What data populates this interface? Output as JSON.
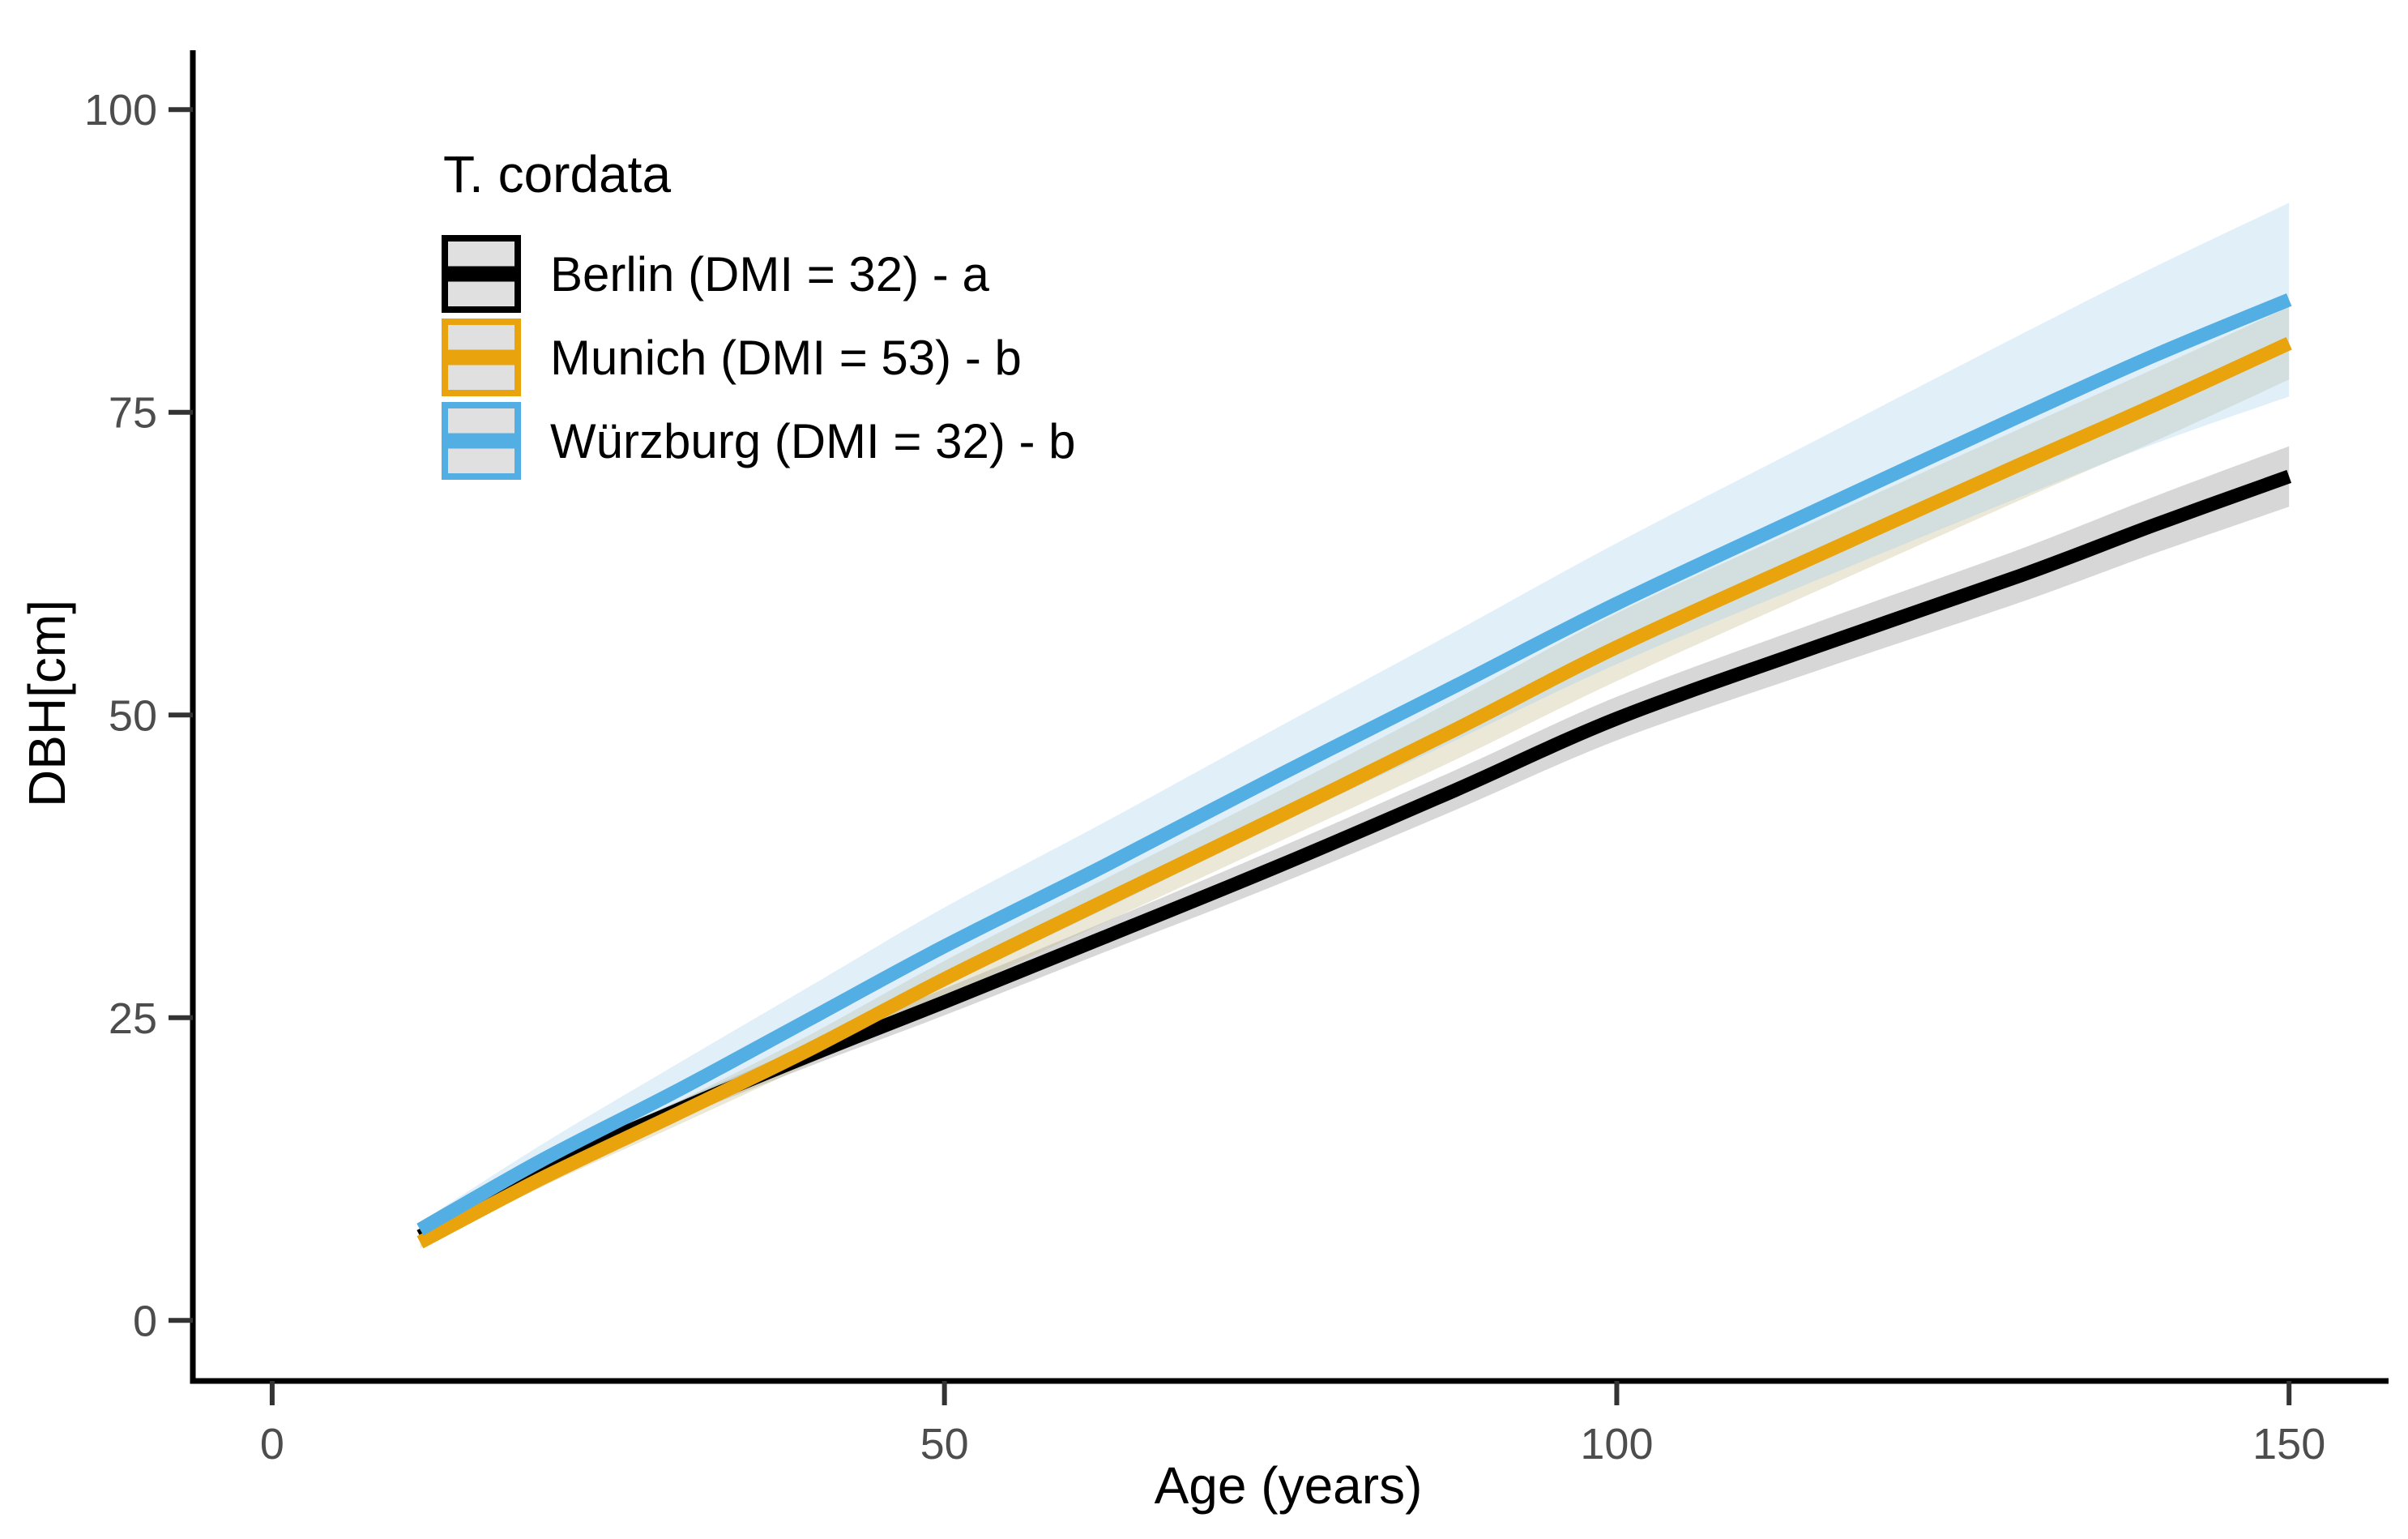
{
  "chart_data": {
    "type": "line",
    "legend_title": "T. cordata",
    "xlabel": "Age (years)",
    "ylabel": "DBH[cm]",
    "x_ticks": [
      0,
      50,
      100,
      150
    ],
    "y_ticks": [
      0,
      25,
      50,
      75,
      100
    ],
    "xlim": [
      -5.9,
      157.4
    ],
    "ylim": [
      -5.0,
      104.9
    ],
    "grid": "off",
    "legend_position": "inside top-left",
    "x": [
      11,
      20,
      30,
      40,
      50,
      62,
      75,
      88,
      100,
      115,
      130,
      140,
      150
    ],
    "series": [
      {
        "name": "Berlin",
        "label": "Berlin (DMI = 32) - a",
        "significance_group": "a",
        "dmi": 32,
        "color": "#000000",
        "ribbon_color": "rgba(130,130,130,0.32)",
        "values": [
          6.95,
          12.4,
          17.3,
          21.9,
          26.3,
          31.7,
          37.6,
          43.8,
          49.7,
          55.7,
          61.5,
          65.7,
          69.7
        ],
        "ribbon_half_width": [
          0.4,
          0.55,
          0.7,
          0.9,
          1.1,
          1.25,
          1.5,
          1.65,
          1.8,
          2.0,
          2.2,
          2.35,
          2.5
        ]
      },
      {
        "name": "Munich",
        "label": "Munich (DMI = 53) - b",
        "significance_group": "b",
        "dmi": 53,
        "color": "#e9a30d",
        "ribbon_color": "rgba(198,189,144,0.35)",
        "values": [
          6.45,
          11.7,
          17.0,
          22.4,
          28.2,
          34.7,
          41.7,
          48.8,
          55.6,
          63.2,
          70.7,
          75.6,
          80.7
        ],
        "ribbon_half_width": [
          0.5,
          0.7,
          0.95,
          1.2,
          1.5,
          1.8,
          2.1,
          2.5,
          2.8,
          2.9,
          2.95,
          3.0,
          3.0
        ]
      },
      {
        "name": "Würzburg",
        "label": "Würzburg (DMI = 32) - b",
        "significance_group": "b",
        "dmi": 32,
        "color": "#53aee4",
        "ribbon_color": "rgba(155,202,235,0.30)",
        "values": [
          7.5,
          13.2,
          18.9,
          24.9,
          30.9,
          37.6,
          45.1,
          52.4,
          59.2,
          67.0,
          74.7,
          79.7,
          84.3
        ],
        "ribbon_half_width": [
          0.6,
          1.3,
          2.2,
          2.7,
          3.2,
          3.6,
          4.0,
          4.5,
          5.0,
          5.8,
          6.7,
          7.3,
          8.0
        ]
      }
    ]
  }
}
